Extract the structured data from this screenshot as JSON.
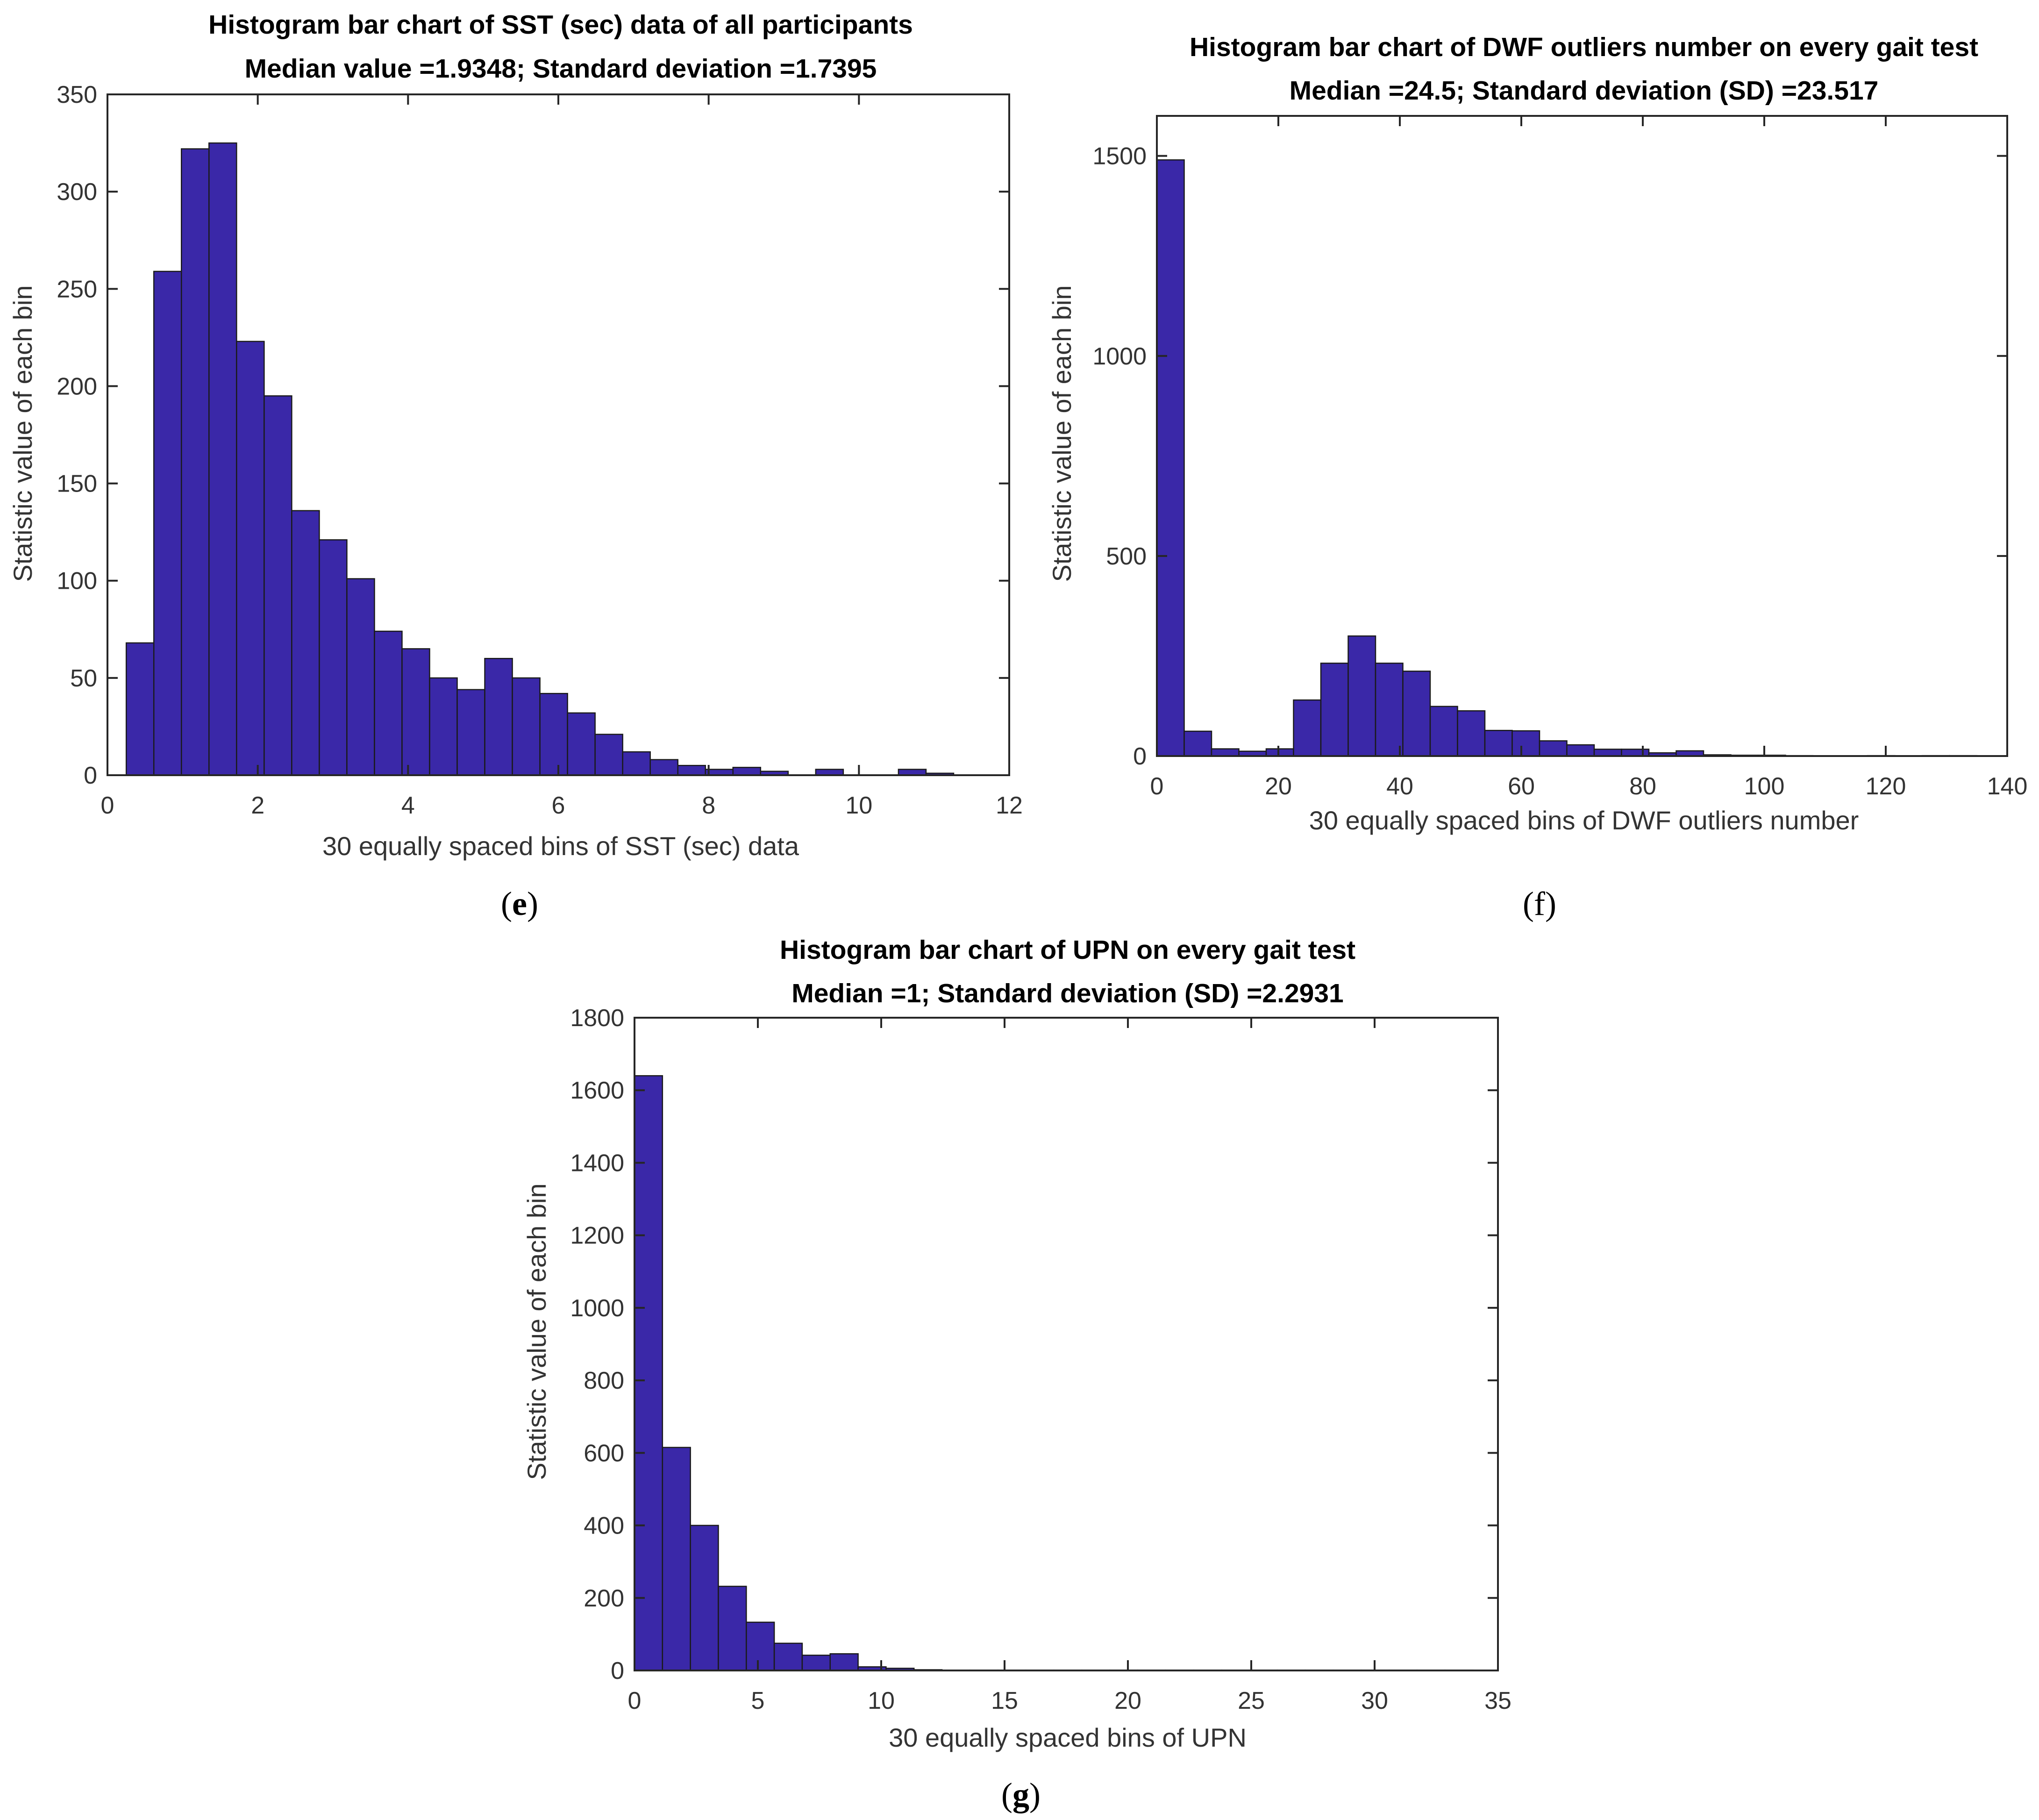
{
  "colors": {
    "bar": "#3a28a8",
    "edge": "#1a1a1a",
    "axis": "#262626"
  },
  "chart_data": [
    {
      "type": "bar",
      "panel": "e",
      "title": "Histogram bar chart of SST (sec) data of all participants",
      "subtitle": "Median value =1.9348; Standard deviation =1.7395",
      "xlabel": "30 equally spaced bins of SST (sec) data",
      "ylabel": "Statistic value of each bin",
      "xlim": [
        0,
        12
      ],
      "ylim": [
        0,
        350
      ],
      "xticks": [
        0,
        2,
        4,
        6,
        8,
        10,
        12
      ],
      "yticks": [
        0,
        50,
        100,
        150,
        200,
        250,
        300,
        350
      ],
      "bin_start": 0.25,
      "bin_width": 0.367,
      "values": [
        68,
        259,
        322,
        325,
        223,
        195,
        136,
        121,
        101,
        74,
        65,
        50,
        44,
        60,
        50,
        42,
        32,
        21,
        12,
        8,
        5,
        3,
        4,
        2,
        0,
        3,
        0,
        0,
        3,
        1
      ]
    },
    {
      "type": "bar",
      "panel": "f",
      "title": "Histogram bar chart of DWF outliers number on every gait test",
      "subtitle": "Median =24.5; Standard deviation (SD) =23.517",
      "xlabel": "30 equally spaced bins of DWF outliers number",
      "ylabel": "Statistic value of each bin",
      "xlim": [
        0,
        140
      ],
      "ylim": [
        0,
        1600
      ],
      "xticks": [
        0,
        20,
        40,
        60,
        80,
        100,
        120,
        140
      ],
      "yticks": [
        0,
        500,
        1000,
        1500
      ],
      "bin_start": 0,
      "bin_width": 4.5,
      "values": [
        1490,
        62,
        18,
        12,
        18,
        140,
        232,
        300,
        232,
        212,
        124,
        113,
        64,
        63,
        38,
        28,
        17,
        17,
        8,
        13,
        3,
        2,
        2,
        1,
        0,
        0,
        1,
        0,
        1,
        1
      ]
    },
    {
      "type": "bar",
      "panel": "g",
      "title": "Histogram bar chart of UPN on every gait test",
      "subtitle": "Median =1; Standard deviation (SD) =2.2931",
      "xlabel": "30 equally spaced bins of UPN",
      "ylabel": "Statistic value of each bin",
      "xlim": [
        0,
        35
      ],
      "ylim": [
        0,
        1800
      ],
      "xticks": [
        0,
        5,
        10,
        15,
        20,
        25,
        30,
        35
      ],
      "yticks": [
        0,
        200,
        400,
        600,
        800,
        1000,
        1200,
        1400,
        1600,
        1800
      ],
      "bin_start": 0,
      "bin_width": 1.133,
      "values": [
        1640,
        615,
        400,
        232,
        133,
        75,
        42,
        46,
        10,
        6,
        2,
        1,
        1,
        1,
        1,
        1,
        1,
        1,
        1,
        1,
        1,
        1,
        1,
        1,
        1,
        1,
        1,
        1,
        1,
        1
      ]
    }
  ],
  "panel_labels": {
    "e": {
      "open": "(",
      "letter": "e",
      "close": ")"
    },
    "f": {
      "open": "(",
      "letter": "f",
      "close": ")"
    },
    "g": {
      "open": "(",
      "letter": "g",
      "close": ")"
    }
  }
}
